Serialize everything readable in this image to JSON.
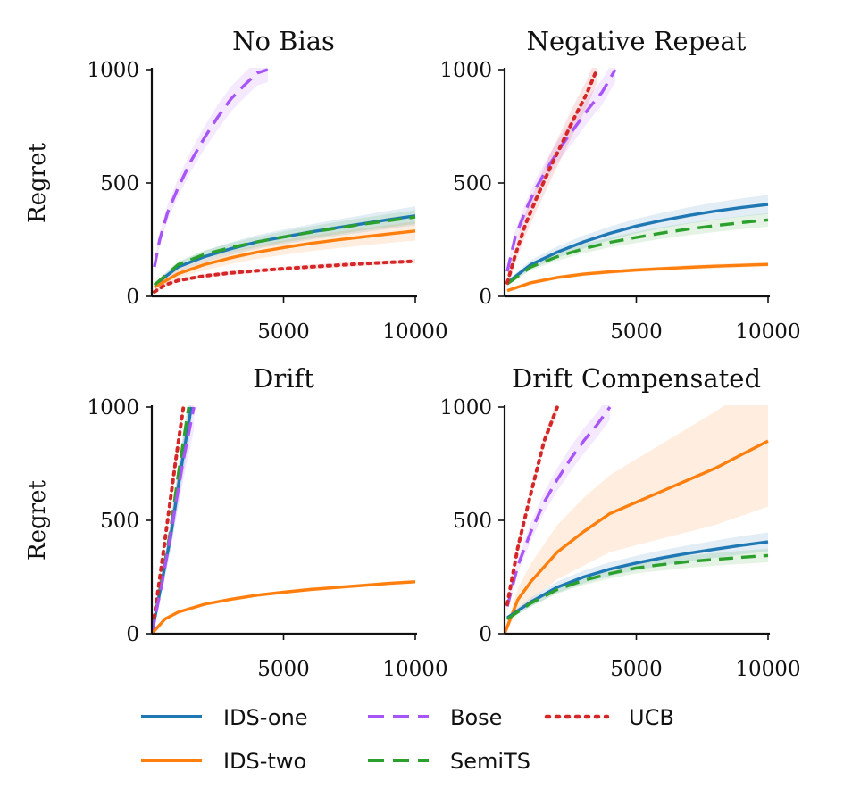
{
  "colors": {
    "IDS-one": "#1f77b4",
    "IDS-two": "#ff7f0e",
    "Bose": "#a855f7",
    "SemiTS": "#2ca02c",
    "UCB": "#d62728"
  },
  "legend": {
    "placement": "bottom",
    "items": [
      {
        "name": "IDS-one",
        "style": "solid"
      },
      {
        "name": "Bose",
        "style": "dashed"
      },
      {
        "name": "UCB",
        "style": "dotted"
      },
      {
        "name": "IDS-two",
        "style": "solid"
      },
      {
        "name": "SemiTS",
        "style": "dashed"
      }
    ]
  },
  "chart_data": [
    {
      "type": "line",
      "title": "No Bias",
      "ylabel": "Regret",
      "xlim": [
        0,
        10000
      ],
      "ylim": [
        0,
        1000
      ],
      "xticks": [
        "5000",
        "10000"
      ],
      "yticks": [
        "0",
        "500",
        "1000"
      ],
      "series": [
        {
          "name": "IDS-one",
          "x": [
            100,
            1000,
            2000,
            3000,
            4000,
            5000,
            6000,
            7000,
            8000,
            9000,
            10000
          ],
          "y": [
            50,
            130,
            175,
            210,
            240,
            262,
            283,
            302,
            320,
            338,
            355
          ],
          "band": [
            10,
            20,
            25,
            28,
            30,
            32,
            34,
            36,
            38,
            40,
            42
          ]
        },
        {
          "name": "IDS-two",
          "x": [
            100,
            1000,
            2000,
            3000,
            4000,
            5000,
            6000,
            7000,
            8000,
            9000,
            10000
          ],
          "y": [
            40,
            100,
            140,
            170,
            195,
            215,
            233,
            248,
            262,
            275,
            288
          ],
          "band": [
            10,
            20,
            25,
            28,
            30,
            32,
            34,
            36,
            38,
            40,
            42
          ]
        },
        {
          "name": "SemiTS",
          "x": [
            100,
            1000,
            2000,
            3000,
            4000,
            5000,
            6000,
            7000,
            8000,
            9000,
            10000
          ],
          "y": [
            50,
            140,
            185,
            215,
            240,
            262,
            282,
            300,
            318,
            334,
            350
          ],
          "band": [
            8,
            15,
            18,
            20,
            22,
            24,
            26,
            27,
            28,
            29,
            30
          ]
        },
        {
          "name": "Bose",
          "x": [
            100,
            300,
            600,
            1000,
            1500,
            2000,
            2500,
            3000,
            3500,
            4000,
            4400
          ],
          "y": [
            130,
            250,
            370,
            480,
            600,
            700,
            790,
            870,
            930,
            985,
            1000
          ],
          "band": [
            20,
            30,
            35,
            40,
            45,
            50,
            55,
            55,
            55,
            55,
            55
          ]
        },
        {
          "name": "UCB",
          "x": [
            100,
            500,
            1000,
            2000,
            3000,
            4000,
            5000,
            6000,
            7000,
            8000,
            9000,
            10000
          ],
          "y": [
            20,
            50,
            70,
            90,
            103,
            113,
            122,
            130,
            137,
            144,
            150,
            155
          ],
          "band": [
            5,
            8,
            8,
            9,
            9,
            9,
            10,
            10,
            10,
            10,
            10,
            10
          ]
        }
      ]
    },
    {
      "type": "line",
      "title": "Negative Repeat",
      "ylabel": "",
      "xlim": [
        0,
        10000
      ],
      "ylim": [
        0,
        1000
      ],
      "xticks": [
        "5000",
        "10000"
      ],
      "yticks": [
        "0",
        "500",
        "1000"
      ],
      "series": [
        {
          "name": "IDS-one",
          "x": [
            100,
            1000,
            2000,
            3000,
            4000,
            5000,
            6000,
            7000,
            8000,
            9000,
            10000
          ],
          "y": [
            60,
            140,
            195,
            240,
            278,
            310,
            335,
            357,
            376,
            392,
            405
          ],
          "band": [
            10,
            20,
            25,
            28,
            30,
            32,
            34,
            36,
            38,
            40,
            42
          ]
        },
        {
          "name": "IDS-two",
          "x": [
            100,
            1000,
            2000,
            3000,
            4000,
            5000,
            6000,
            7000,
            8000,
            9000,
            10000
          ],
          "y": [
            25,
            60,
            83,
            98,
            108,
            116,
            122,
            128,
            133,
            137,
            141
          ],
          "band": [
            5,
            8,
            8,
            9,
            9,
            9,
            10,
            10,
            10,
            10,
            10
          ]
        },
        {
          "name": "SemiTS",
          "x": [
            100,
            1000,
            2000,
            3000,
            4000,
            5000,
            6000,
            7000,
            8000,
            9000,
            10000
          ],
          "y": [
            55,
            130,
            175,
            210,
            238,
            260,
            280,
            297,
            312,
            325,
            337
          ],
          "band": [
            8,
            15,
            18,
            20,
            22,
            24,
            26,
            27,
            28,
            29,
            30
          ]
        },
        {
          "name": "Bose",
          "x": [
            100,
            400,
            800,
            1200,
            1700,
            2200,
            2700,
            3200,
            3700,
            4200
          ],
          "y": [
            110,
            260,
            380,
            480,
            580,
            670,
            750,
            830,
            900,
            1000
          ],
          "band": [
            20,
            30,
            35,
            40,
            45,
            50,
            55,
            55,
            55,
            55
          ]
        },
        {
          "name": "UCB",
          "x": [
            100,
            400,
            800,
            1200,
            1700,
            2200,
            2700,
            3100,
            3500
          ],
          "y": [
            60,
            180,
            320,
            430,
            560,
            680,
            800,
            890,
            1000
          ],
          "band": [
            20,
            40,
            50,
            55,
            60,
            60,
            60,
            60,
            60
          ]
        }
      ]
    },
    {
      "type": "line",
      "title": "Drift",
      "ylabel": "Regret",
      "xlim": [
        0,
        10000
      ],
      "ylim": [
        0,
        1000
      ],
      "xticks": [
        "5000",
        "10000"
      ],
      "yticks": [
        "0",
        "500",
        "1000"
      ],
      "series": [
        {
          "name": "IDS-one",
          "x": [
            0,
            300,
            700,
            1100,
            1500
          ],
          "y": [
            0,
            180,
            420,
            720,
            1000
          ],
          "band": [
            5,
            30,
            60,
            80,
            90
          ]
        },
        {
          "name": "SemiTS",
          "x": [
            0,
            300,
            700,
            1000,
            1400
          ],
          "y": [
            0,
            190,
            450,
            700,
            1000
          ],
          "band": [
            5,
            20,
            30,
            35,
            40
          ]
        },
        {
          "name": "UCB",
          "x": [
            0,
            300,
            600,
            900,
            1200
          ],
          "y": [
            0,
            240,
            500,
            760,
            1000
          ],
          "band": [
            5,
            15,
            20,
            25,
            30
          ]
        },
        {
          "name": "Bose",
          "x": [
            0,
            400,
            800,
            1200,
            1600
          ],
          "y": [
            0,
            230,
            500,
            770,
            1000
          ],
          "band": [
            5,
            40,
            70,
            90,
            100
          ]
        },
        {
          "name": "IDS-two",
          "x": [
            0,
            500,
            1000,
            2000,
            3000,
            4000,
            5000,
            6000,
            7000,
            8000,
            9000,
            10000
          ],
          "y": [
            0,
            65,
            95,
            130,
            152,
            170,
            183,
            195,
            204,
            213,
            222,
            229
          ],
          "band": [
            2,
            5,
            6,
            6,
            7,
            7,
            7,
            8,
            8,
            8,
            8,
            8
          ]
        }
      ]
    },
    {
      "type": "line",
      "title": "Drift Compensated",
      "ylabel": "",
      "xlim": [
        0,
        10000
      ],
      "ylim": [
        0,
        1000
      ],
      "xticks": [
        "5000",
        "10000"
      ],
      "yticks": [
        "0",
        "500",
        "1000"
      ],
      "series": [
        {
          "name": "IDS-two",
          "x": [
            0,
            500,
            1000,
            2000,
            3000,
            4000,
            5000,
            6000,
            7000,
            8000,
            9000,
            10000
          ],
          "y": [
            0,
            150,
            230,
            360,
            450,
            530,
            580,
            630,
            680,
            730,
            790,
            850
          ],
          "band": [
            10,
            50,
            80,
            120,
            150,
            170,
            190,
            210,
            230,
            250,
            270,
            290
          ]
        },
        {
          "name": "IDS-one",
          "x": [
            100,
            1000,
            2000,
            3000,
            4000,
            5000,
            6000,
            7000,
            8000,
            9000,
            10000
          ],
          "y": [
            70,
            140,
            205,
            250,
            285,
            312,
            335,
            355,
            373,
            390,
            405
          ],
          "band": [
            10,
            20,
            25,
            28,
            30,
            32,
            34,
            36,
            38,
            40,
            42
          ]
        },
        {
          "name": "SemiTS",
          "x": [
            100,
            1000,
            2000,
            3000,
            4000,
            5000,
            6000,
            7000,
            8000,
            9000,
            10000
          ],
          "y": [
            65,
            135,
            195,
            235,
            265,
            290,
            305,
            318,
            328,
            337,
            345
          ],
          "band": [
            8,
            15,
            18,
            20,
            22,
            24,
            26,
            27,
            28,
            29,
            30
          ]
        },
        {
          "name": "Bose",
          "x": [
            100,
            500,
            1000,
            1500,
            2000,
            2500,
            3000,
            3500,
            4000
          ],
          "y": [
            120,
            300,
            450,
            580,
            680,
            770,
            850,
            920,
            1000
          ],
          "band": [
            20,
            30,
            40,
            45,
            50,
            55,
            55,
            55,
            55
          ]
        },
        {
          "name": "UCB",
          "x": [
            100,
            500,
            1000,
            1500,
            2000
          ],
          "y": [
            130,
            380,
            620,
            850,
            1000
          ],
          "band": [
            10,
            15,
            20,
            25,
            30
          ]
        }
      ]
    }
  ]
}
